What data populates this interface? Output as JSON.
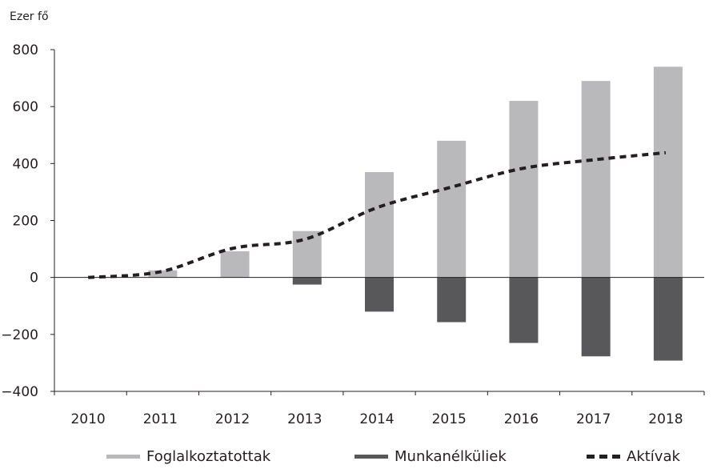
{
  "chart_data": {
    "type": "bar",
    "unit_label": "Ezer fő",
    "categories": [
      "2010",
      "2011",
      "2012",
      "2013",
      "2014",
      "2015",
      "2016",
      "2017",
      "2018"
    ],
    "ylim": [
      -400,
      800
    ],
    "yticks": [
      800,
      600,
      400,
      200,
      0,
      -200,
      -400
    ],
    "ytick_labels": [
      "800",
      "600",
      "400",
      "200",
      "0",
      "−200",
      "−400"
    ],
    "series": [
      {
        "name": "Foglalkoztatottak",
        "type": "bar",
        "color": "#b9b9bb",
        "values": [
          0,
          25,
          92,
          163,
          370,
          480,
          620,
          690,
          740
        ]
      },
      {
        "name": "Munkanélküliek",
        "type": "bar",
        "color": "#58585a",
        "values": [
          0,
          0,
          0,
          -25,
          -120,
          -157,
          -230,
          -277,
          -292
        ]
      },
      {
        "name": "Aktívak",
        "type": "line",
        "style": "dashed",
        "color": "#231f20",
        "values": [
          0,
          20,
          102,
          134,
          245,
          315,
          382,
          413,
          438
        ]
      }
    ],
    "grid": false,
    "legend_position": "bottom"
  }
}
